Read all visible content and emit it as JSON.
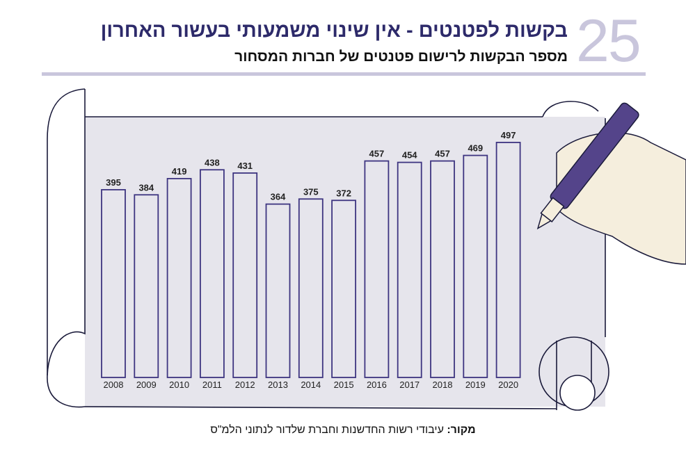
{
  "header": {
    "number": "25",
    "title": "בקשות לפטנטים - אין שינוי משמעותי בעשור האחרון",
    "subtitle": "מספר הבקשות לרישום פטנטים של חברות המסחור"
  },
  "footer": {
    "source_label": "מקור:",
    "source_text": " עיבודי רשות החדשנות וחברת שלדור לנתוני הלמ\"ס"
  },
  "colors": {
    "bar_stroke": "#3d3480",
    "pen": "#54448a",
    "paper": "#e6e5ec",
    "hand": "#f5eedd",
    "accent": "#c9c6dc"
  },
  "chart_data": {
    "type": "bar",
    "title": "מספר הבקשות לרישום פטנטים של חברות המסחור",
    "categories": [
      "2008",
      "2009",
      "2010",
      "2011",
      "2012",
      "2013",
      "2014",
      "2015",
      "2016",
      "2017",
      "2018",
      "2019",
      "2020"
    ],
    "values": [
      395,
      384,
      419,
      438,
      431,
      364,
      375,
      372,
      457,
      454,
      457,
      469,
      497
    ],
    "xlabel": "",
    "ylabel": "",
    "grid": false
  }
}
